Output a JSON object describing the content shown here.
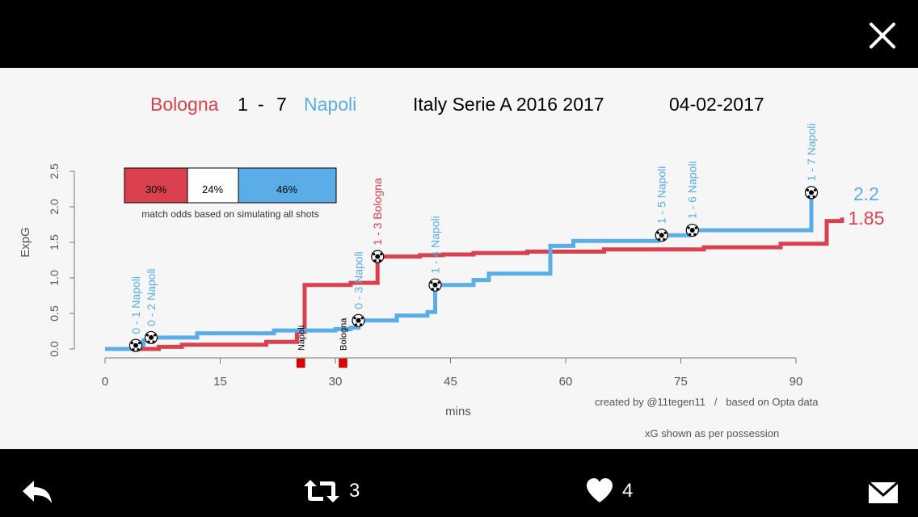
{
  "toolbar": {
    "close_icon": "close-icon"
  },
  "chart": {
    "title": {
      "home": "Bologna",
      "score_home": "1",
      "dash": "-",
      "score_away": "7",
      "away": "Napoli",
      "competition": "Italy Serie A 2016 2017",
      "date": "04-02-2017"
    },
    "colors": {
      "home": "#d9414f",
      "away": "#5aade6",
      "draw": "#ffffff"
    },
    "odds": {
      "home": "30%",
      "draw": "24%",
      "away": "46%",
      "caption": "match odds based on simulating all shots"
    },
    "final_xg": {
      "away": "2.2",
      "home": "1.85"
    },
    "events": [
      {
        "label": "0 - 1 Napoli",
        "team": "away"
      },
      {
        "label": "0 - 2 Napoli",
        "team": "away"
      },
      {
        "label": "0 - 3 Napoli",
        "team": "away"
      },
      {
        "label": "1 - 3 Bologna",
        "team": "home"
      },
      {
        "label": "1 - 4 Napoli",
        "team": "away"
      },
      {
        "label": "1 - 5 Napoli",
        "team": "away"
      },
      {
        "label": "1 - 6 Napoli",
        "team": "away"
      },
      {
        "label": "1 - 7 Napoli",
        "team": "away"
      }
    ],
    "cards": [
      {
        "label": "Napoli"
      },
      {
        "label": "Bologna"
      }
    ],
    "footer": {
      "credit": "created by @11tegen11   /   based on Opta data",
      "note": "xG shown as per possession"
    }
  },
  "chart_data": {
    "type": "line",
    "title": "Bologna 1 - 7 Napoli   Italy Serie A 2016 2017   04-02-2017",
    "xlabel": "mins",
    "ylabel": "ExpG",
    "xlim": [
      0,
      95
    ],
    "ylim": [
      0,
      2.5
    ],
    "xticks": [
      0,
      15,
      30,
      45,
      60,
      75,
      90
    ],
    "yticks": [
      0.0,
      0.5,
      1.0,
      1.5,
      2.0,
      2.5
    ],
    "grid": false,
    "series": [
      {
        "name": "Napoli",
        "step": true,
        "x": [
          0,
          3,
          4,
          5,
          6,
          12,
          22,
          30,
          32,
          33,
          38,
          42,
          43,
          48,
          50,
          58,
          61,
          72,
          76,
          92,
          92
        ],
        "y": [
          0,
          0,
          0.05,
          0.12,
          0.16,
          0.22,
          0.26,
          0.28,
          0.3,
          0.4,
          0.47,
          0.52,
          0.9,
          0.97,
          1.06,
          1.45,
          1.52,
          1.6,
          1.67,
          1.67,
          2.2
        ]
      },
      {
        "name": "Bologna",
        "step": true,
        "x": [
          0,
          7,
          10,
          21,
          25,
          26,
          32,
          35.5,
          41,
          44,
          48,
          55,
          65,
          78,
          88,
          94,
          96
        ],
        "y": [
          0,
          0.03,
          0.06,
          0.1,
          0.24,
          0.9,
          0.93,
          1.3,
          1.32,
          1.33,
          1.35,
          1.37,
          1.4,
          1.43,
          1.48,
          1.8,
          1.85
        ]
      }
    ],
    "goals": [
      {
        "label": "0 - 1 Napoli",
        "x": 4,
        "y": 0.05
      },
      {
        "label": "0 - 2 Napoli",
        "x": 6,
        "y": 0.16
      },
      {
        "label": "0 - 3 Napoli",
        "x": 33,
        "y": 0.4
      },
      {
        "label": "1 - 3 Bologna",
        "x": 35.5,
        "y": 1.3
      },
      {
        "label": "1 - 4 Napoli",
        "x": 43,
        "y": 0.9
      },
      {
        "label": "1 - 5 Napoli",
        "x": 72.5,
        "y": 1.6
      },
      {
        "label": "1 - 6 Napoli",
        "x": 76.5,
        "y": 1.67
      },
      {
        "label": "1 - 7 Napoli",
        "x": 92,
        "y": 2.2
      }
    ],
    "red_cards": [
      {
        "label": "Napoli",
        "x": 25.5
      },
      {
        "label": "Bologna",
        "x": 31
      }
    ]
  },
  "actions": {
    "reply": {
      "icon": "reply-icon"
    },
    "retweet": {
      "icon": "retweet-icon",
      "count": "3"
    },
    "like": {
      "icon": "heart-icon",
      "count": "4"
    },
    "dm": {
      "icon": "envelope-icon"
    }
  }
}
